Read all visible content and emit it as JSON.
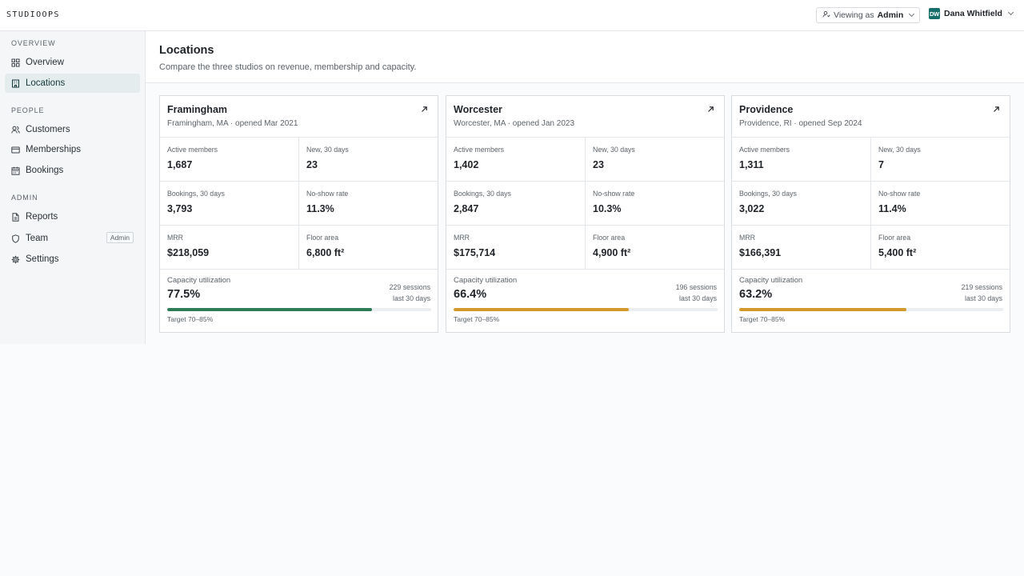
{
  "app": {
    "brand": "STUDIOOPS"
  },
  "topbar": {
    "viewing_prefix": "Viewing as",
    "viewing_role": "Admin",
    "user_initials": "DW",
    "user_name": "Dana Whitfield"
  },
  "sidebar": {
    "sections": [
      {
        "label": "OVERVIEW",
        "items": [
          {
            "label": "Overview",
            "icon": "grid-icon",
            "active": false
          },
          {
            "label": "Locations",
            "icon": "building-icon",
            "active": true
          }
        ]
      },
      {
        "label": "PEOPLE",
        "items": [
          {
            "label": "Customers",
            "icon": "users-icon",
            "active": false
          },
          {
            "label": "Memberships",
            "icon": "card-icon",
            "active": false
          },
          {
            "label": "Bookings",
            "icon": "calendar-icon",
            "active": false
          }
        ]
      },
      {
        "label": "ADMIN",
        "items": [
          {
            "label": "Reports",
            "icon": "document-icon",
            "active": false
          },
          {
            "label": "Team",
            "icon": "shield-icon",
            "active": false,
            "badge": "Admin"
          },
          {
            "label": "Settings",
            "icon": "gear-icon",
            "active": false
          }
        ]
      }
    ]
  },
  "page": {
    "title": "Locations",
    "subtitle": "Compare the three studios on revenue, membership and capacity."
  },
  "locations": [
    {
      "name": "Framingham",
      "meta": "Framingham, MA · opened Mar 2021",
      "metrics": [
        {
          "label": "Active members",
          "value": "1,687"
        },
        {
          "label": "New, 30 days",
          "value": "23"
        },
        {
          "label": "Bookings, 30 days",
          "value": "3,793"
        },
        {
          "label": "No-show rate",
          "value": "11.3%"
        },
        {
          "label": "MRR",
          "value": "$218,059"
        },
        {
          "label": "Floor area",
          "value": "6,800 ft²"
        }
      ],
      "capacity_label": "Capacity utilization",
      "capacity": "77.5%",
      "capacity_fraction": 0.775,
      "sessions": "229 sessions",
      "sessions_period": "last 30 days",
      "target": "Target 70–85%",
      "bar_color": "#2e7d57"
    },
    {
      "name": "Worcester",
      "meta": "Worcester, MA · opened Jan 2023",
      "metrics": [
        {
          "label": "Active members",
          "value": "1,402"
        },
        {
          "label": "New, 30 days",
          "value": "23"
        },
        {
          "label": "Bookings, 30 days",
          "value": "2,847"
        },
        {
          "label": "No-show rate",
          "value": "10.3%"
        },
        {
          "label": "MRR",
          "value": "$175,714"
        },
        {
          "label": "Floor area",
          "value": "4,900 ft²"
        }
      ],
      "capacity_label": "Capacity utilization",
      "capacity": "66.4%",
      "capacity_fraction": 0.664,
      "sessions": "196 sessions",
      "sessions_period": "last 30 days",
      "target": "Target 70–85%",
      "bar_color": "#d4992a"
    },
    {
      "name": "Providence",
      "meta": "Providence, RI · opened Sep 2024",
      "metrics": [
        {
          "label": "Active members",
          "value": "1,311"
        },
        {
          "label": "New, 30 days",
          "value": "7"
        },
        {
          "label": "Bookings, 30 days",
          "value": "3,022"
        },
        {
          "label": "No-show rate",
          "value": "11.4%"
        },
        {
          "label": "MRR",
          "value": "$166,391"
        },
        {
          "label": "Floor area",
          "value": "5,400 ft²"
        }
      ],
      "capacity_label": "Capacity utilization",
      "capacity": "63.2%",
      "capacity_fraction": 0.632,
      "sessions": "219 sessions",
      "sessions_period": "last 30 days",
      "target": "Target 70–85%",
      "bar_color": "#d4992a"
    }
  ]
}
